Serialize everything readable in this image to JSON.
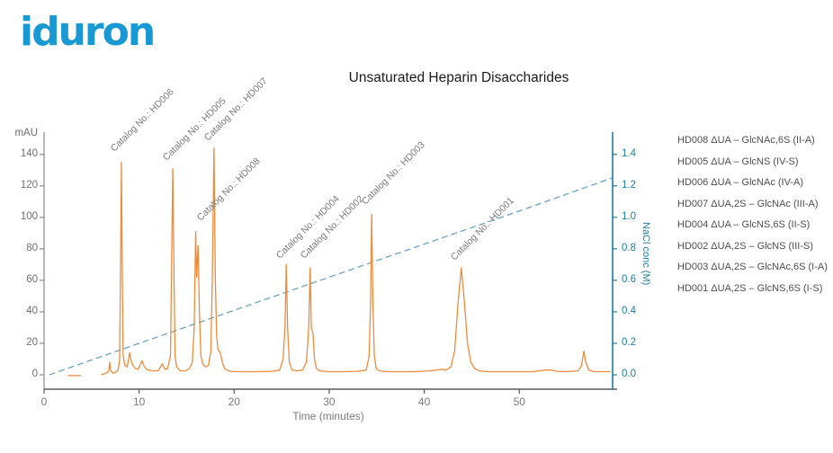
{
  "logo": {
    "text": "iduron",
    "color": "#1899d4"
  },
  "legend": {
    "items": [
      "HD008 ΔUA – GlcNAc,6S (II-A)",
      "HD005 ΔUA – GlcNS (IV-S)",
      "HD006 ΔUA – GlcNAc (IV-A)",
      "HD007 ΔUA,2S – GlcNAc (III-A)",
      "HD004 ΔUA – GlcNS,6S (II-S)",
      "HD002 ΔUA,2S – GlcNS (III-S)",
      "HD003 ΔUA,2S – GlcNAc,6S (I-A)",
      "HD001 ΔUA,2S – GlcNS,6S (I-S)"
    ]
  },
  "chart_data": {
    "type": "line",
    "title": "Unsaturated Heparin Disaccharides",
    "x_axis": {
      "title": "Time (minutes)",
      "range": [
        0,
        60
      ],
      "ticks": [
        0,
        10,
        20,
        30,
        40,
        50
      ],
      "grid": false
    },
    "y_left": {
      "title": "mAU",
      "range": [
        -9,
        155
      ],
      "ticks": [
        0,
        20,
        40,
        60,
        80,
        100,
        120,
        140
      ]
    },
    "y_right": {
      "title": "NaCl conc (M)",
      "range": [
        0,
        1.4
      ],
      "tick_labels": [
        "0.0",
        "0.2",
        "0.4",
        "0.6",
        "0.8",
        "1.0",
        "1.2",
        "1.4"
      ]
    },
    "colors": {
      "trace": "#ee8b3a",
      "gradient": "#6aa3c3",
      "right_axis": "#1b7fa5",
      "left_axis": "#8a8a8a",
      "bottom_axis": "#5a5a5a"
    },
    "peaks": [
      {
        "catalog": "HD006",
        "time_min": 8.1,
        "height_mau": 135
      },
      {
        "catalog": "HD005",
        "time_min": 13.5,
        "height_mau": 131
      },
      {
        "catalog": "HD008",
        "time_min": 16.0,
        "height_mau": 91
      },
      {
        "catalog": "HD007",
        "time_min": 17.9,
        "height_mau": 144
      },
      {
        "catalog": "HD004",
        "time_min": 25.5,
        "height_mau": 70
      },
      {
        "catalog": "HD002",
        "time_min": 28.0,
        "height_mau": 68
      },
      {
        "catalog": "HD003",
        "time_min": 34.5,
        "height_mau": 102
      },
      {
        "catalog": "HD001",
        "time_min": 43.9,
        "height_mau": 68
      },
      {
        "catalog": "",
        "time_min": 56.8,
        "height_mau": 15
      }
    ],
    "annotations": [
      {
        "label": "Catalog No.: HD006",
        "t": 7.67,
        "mau": 140
      },
      {
        "label": "Catalog No.: HD005",
        "t": 13.2,
        "mau": 134
      },
      {
        "label": "Catalog No.: HD008",
        "t": 16.75,
        "mau": 96
      },
      {
        "label": "Catalog No.: HD007",
        "t": 17.5,
        "mau": 147
      },
      {
        "label": "Catalog No.: HD004",
        "t": 25.1,
        "mau": 72
      },
      {
        "label": "Catalog No.: HD002",
        "t": 27.6,
        "mau": 72
      },
      {
        "label": "Catalog No.: HD003",
        "t": 34.1,
        "mau": 106
      },
      {
        "label": "Catalog No.: HD001",
        "t": 43.4,
        "mau": 71
      }
    ],
    "series": [
      {
        "name": "UV absorbance (mAU)",
        "axis": "left",
        "style": "solid",
        "segments": [
          [
            [
              2.5,
              -0.5
            ],
            [
              3.9,
              -0.5
            ]
          ],
          [
            [
              6.0,
              0
            ],
            [
              6.5,
              1
            ],
            [
              6.8,
              2
            ],
            [
              6.9,
              8
            ],
            [
              7.0,
              3
            ],
            [
              7.2,
              1
            ],
            [
              7.5,
              1.5
            ],
            [
              7.8,
              3
            ],
            [
              7.95,
              10
            ],
            [
              8.05,
              70
            ],
            [
              8.14,
              135
            ],
            [
              8.22,
              70
            ],
            [
              8.32,
              12
            ],
            [
              8.5,
              6
            ],
            [
              8.75,
              5
            ],
            [
              9.0,
              14
            ],
            [
              9.15,
              9
            ],
            [
              9.35,
              6
            ],
            [
              9.6,
              4
            ],
            [
              9.9,
              3.5
            ],
            [
              10.3,
              9
            ],
            [
              10.55,
              5
            ],
            [
              10.9,
              3
            ],
            [
              11.4,
              2.5
            ],
            [
              12.0,
              2.5
            ],
            [
              12.45,
              7
            ],
            [
              12.7,
              3.5
            ],
            [
              13.0,
              4
            ],
            [
              13.3,
              12
            ],
            [
              13.42,
              70
            ],
            [
              13.54,
              131
            ],
            [
              13.66,
              70
            ],
            [
              13.78,
              12
            ],
            [
              13.95,
              5
            ],
            [
              14.3,
              2.5
            ],
            [
              14.9,
              2.5
            ],
            [
              15.3,
              4
            ],
            [
              15.6,
              8
            ],
            [
              15.8,
              30
            ],
            [
              15.95,
              91
            ],
            [
              16.05,
              62
            ],
            [
              16.2,
              82
            ],
            [
              16.35,
              40
            ],
            [
              16.5,
              12
            ],
            [
              16.7,
              7
            ],
            [
              17.0,
              5
            ],
            [
              17.3,
              6
            ],
            [
              17.55,
              15
            ],
            [
              17.7,
              60
            ],
            [
              17.88,
              144
            ],
            [
              18.02,
              60
            ],
            [
              18.15,
              25
            ],
            [
              18.3,
              16
            ],
            [
              18.55,
              14
            ],
            [
              18.75,
              8
            ],
            [
              19.0,
              4
            ],
            [
              19.4,
              2.5
            ],
            [
              20.0,
              2
            ],
            [
              21.0,
              2
            ],
            [
              22.5,
              2
            ],
            [
              24.0,
              2.2
            ],
            [
              24.8,
              3
            ],
            [
              25.15,
              10
            ],
            [
              25.35,
              30
            ],
            [
              25.48,
              70
            ],
            [
              25.62,
              30
            ],
            [
              25.8,
              8
            ],
            [
              26.1,
              3
            ],
            [
              26.6,
              2.5
            ],
            [
              27.2,
              3
            ],
            [
              27.6,
              8
            ],
            [
              27.85,
              30
            ],
            [
              28.0,
              68
            ],
            [
              28.12,
              30
            ],
            [
              28.3,
              26
            ],
            [
              28.45,
              10
            ],
            [
              28.65,
              4
            ],
            [
              29.0,
              2.5
            ],
            [
              30.0,
              2
            ],
            [
              31.5,
              2
            ],
            [
              33.0,
              2.2
            ],
            [
              33.9,
              3
            ],
            [
              34.2,
              12
            ],
            [
              34.35,
              45
            ],
            [
              34.47,
              102
            ],
            [
              34.6,
              45
            ],
            [
              34.75,
              12
            ],
            [
              34.95,
              4
            ],
            [
              35.3,
              2.5
            ],
            [
              36.0,
              2
            ],
            [
              37.5,
              2
            ],
            [
              39.0,
              2
            ],
            [
              40.5,
              2.5
            ],
            [
              41.3,
              3
            ],
            [
              41.8,
              3.5
            ],
            [
              42.3,
              3
            ],
            [
              42.8,
              5
            ],
            [
              43.2,
              15
            ],
            [
              43.55,
              45
            ],
            [
              43.9,
              68
            ],
            [
              44.2,
              48
            ],
            [
              44.55,
              20
            ],
            [
              44.9,
              8
            ],
            [
              45.3,
              4
            ],
            [
              45.8,
              2.5
            ],
            [
              46.5,
              2
            ],
            [
              48.0,
              2
            ],
            [
              50.0,
              2
            ],
            [
              51.5,
              2
            ],
            [
              52.8,
              3
            ],
            [
              53.4,
              3
            ],
            [
              54.0,
              2.2
            ],
            [
              55.0,
              2
            ],
            [
              56.2,
              2.5
            ],
            [
              56.55,
              6
            ],
            [
              56.8,
              15
            ],
            [
              57.0,
              8
            ],
            [
              57.3,
              3
            ],
            [
              57.8,
              2
            ],
            [
              58.5,
              2
            ],
            [
              59.6,
              2
            ]
          ]
        ]
      },
      {
        "name": "NaCl gradient",
        "axis": "right",
        "style": "dashed",
        "points": [
          [
            0.55,
            0
          ],
          [
            10,
            0.2
          ],
          [
            20,
            0.41
          ],
          [
            30,
            0.62
          ],
          [
            40,
            0.83
          ],
          [
            50,
            1.04
          ],
          [
            59.75,
            1.25
          ]
        ]
      }
    ]
  }
}
